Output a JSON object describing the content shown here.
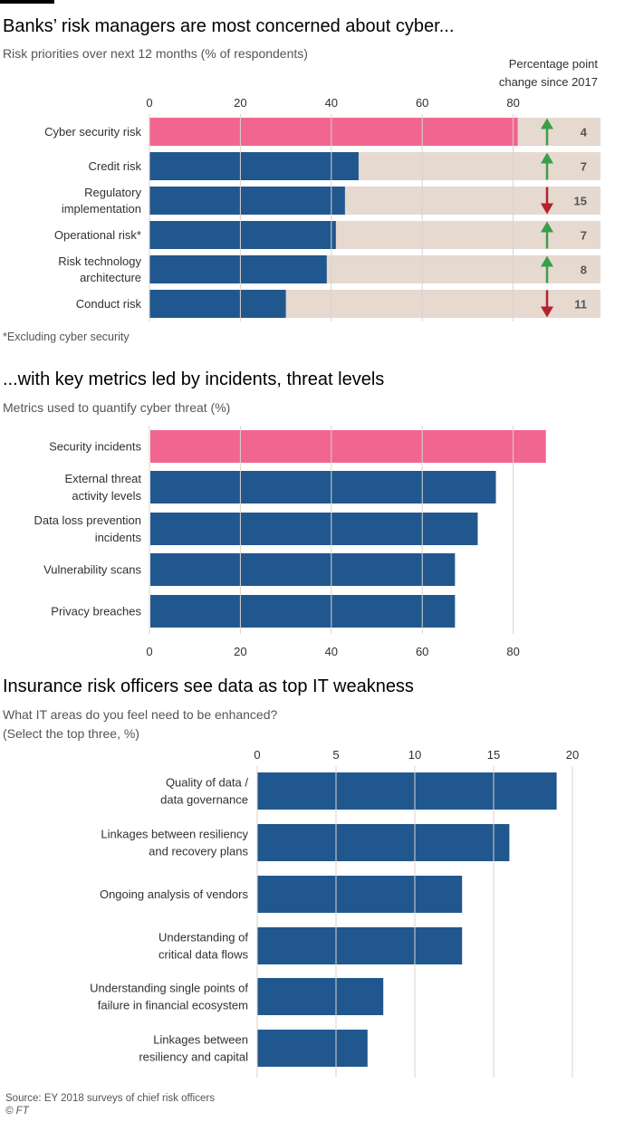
{
  "chart_data": [
    {
      "type": "bar",
      "orientation": "horizontal",
      "title": "Banks’ risk managers are most concerned about cyber...",
      "subtitle": "Risk priorities over next 12 months (% of respondents)",
      "change_header": "Percentage point change since 2017",
      "categories": [
        "Cyber security risk",
        "Credit risk",
        "Regulatory implementation",
        "Operational risk*",
        "Risk technology architecture",
        "Conduct risk"
      ],
      "values": [
        81,
        46,
        43,
        41,
        39,
        30
      ],
      "changes": [
        4,
        7,
        15,
        7,
        8,
        11
      ],
      "change_directions": [
        "up",
        "up",
        "down",
        "up",
        "up",
        "down"
      ],
      "highlight_index": 0,
      "xticks": [
        0,
        20,
        40,
        60,
        80
      ],
      "xlim": [
        0,
        100
      ],
      "footnote": "*Excluding cyber security"
    },
    {
      "type": "bar",
      "orientation": "horizontal",
      "title": "...with key metrics led by incidents, threat levels",
      "subtitle": "Metrics used to quantify cyber threat (%)",
      "categories": [
        "Security incidents",
        "External threat activity levels",
        "Data loss prevention incidents",
        "Vulnerability scans",
        "Privacy breaches"
      ],
      "values": [
        87,
        76,
        72,
        67,
        67
      ],
      "highlight_index": 0,
      "xticks": [
        0,
        20,
        40,
        60,
        80
      ],
      "xlim": [
        0,
        100
      ]
    },
    {
      "type": "bar",
      "orientation": "horizontal",
      "title": "Insurance risk officers see data as top IT weakness",
      "subtitle_line1": "What IT areas do you feel need to be enhanced?",
      "subtitle_line2": "(Select the top three, %)",
      "categories": [
        "Quality of data / data governance",
        "Linkages between resiliency and recovery plans",
        "Ongoing analysis of vendors",
        "Understanding of critical data flows",
        "Understanding single points of failure in financial ecosystem",
        "Linkages between resiliency and capital"
      ],
      "values": [
        19,
        16,
        13,
        13,
        8,
        7
      ],
      "xticks": [
        0,
        5,
        10,
        15,
        20
      ],
      "xlim": [
        0,
        20
      ]
    }
  ],
  "source_line": "Source: EY 2018 surveys of chief risk officers",
  "copyright": "© FT",
  "colors": {
    "highlight": "#f06690",
    "bar": "#21578f",
    "track": "#e6d9cf",
    "up": "#3a9e48",
    "down": "#b5202e",
    "grid": "#d9d3cc",
    "text": "#33302e"
  }
}
